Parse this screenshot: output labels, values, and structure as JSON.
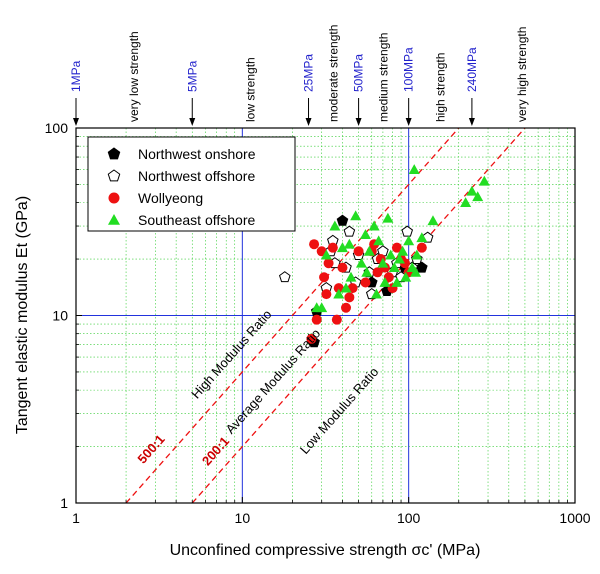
{
  "chart_data": {
    "type": "scatter",
    "xlabel": "Unconfined compressive strength σc' (MPa)",
    "ylabel": "Tangent elastic modulus Et (GPa)",
    "xscale": "log",
    "yscale": "log",
    "xlim": [
      1,
      1000
    ],
    "ylim": [
      1,
      100
    ],
    "x_ticks": [
      "1",
      "10",
      "100",
      "1000"
    ],
    "y_ticks": [
      "1",
      "10",
      "100"
    ],
    "grid": "minor dotted green, major blue at 10",
    "legend_position": "top-left",
    "strength_markers": [
      {
        "label": "1MPa",
        "value": 1
      },
      {
        "label": "5MPa",
        "value": 5
      },
      {
        "label": "25MPa",
        "value": 25
      },
      {
        "label": "50MPa",
        "value": 50
      },
      {
        "label": "100MPa",
        "value": 100
      },
      {
        "label": "240MPa",
        "value": 240
      }
    ],
    "strength_classes": [
      {
        "label": "very low strength",
        "center": 2.236
      },
      {
        "label": "low strength",
        "center": 11.18
      },
      {
        "label": "moderate strength",
        "center": 35.36
      },
      {
        "label": "medium strength",
        "center": 70.71
      },
      {
        "label": "high strength",
        "center": 154.9
      },
      {
        "label": "very high strength",
        "center": 480
      }
    ],
    "ratio_lines": [
      {
        "label": "500:1",
        "ratio": 500
      },
      {
        "label": "200:1",
        "ratio": 200
      }
    ],
    "region_labels": [
      "High Modulus Ratio",
      "Average Modulus Ratio",
      "Low Modulus Ratio"
    ],
    "series": [
      {
        "name": "Northwest onshore",
        "marker": "pentagon-filled",
        "color": "#000000",
        "points": [
          [
            40,
            32
          ],
          [
            74,
            13.5
          ],
          [
            120,
            18
          ],
          [
            28,
            10.5
          ],
          [
            27,
            7.2
          ],
          [
            95,
            18
          ],
          [
            60,
            15
          ]
        ]
      },
      {
        "name": "Northwest offshore",
        "marker": "pentagon-open",
        "color": "#000000",
        "points": [
          [
            18,
            16
          ],
          [
            35,
            25
          ],
          [
            44,
            28
          ],
          [
            32,
            14
          ],
          [
            36,
            19
          ],
          [
            42,
            18
          ],
          [
            50,
            21
          ],
          [
            58,
            17
          ],
          [
            65,
            20
          ],
          [
            70,
            22
          ],
          [
            80,
            17
          ],
          [
            90,
            16
          ],
          [
            98,
            28
          ],
          [
            105,
            18
          ],
          [
            112,
            20
          ],
          [
            130,
            26
          ],
          [
            34,
            22
          ],
          [
            60,
            13
          ],
          [
            48,
            15
          ],
          [
            85,
            19
          ]
        ]
      },
      {
        "name": "Wollyeong",
        "marker": "circle",
        "color": "#ee1111",
        "points": [
          [
            27,
            24
          ],
          [
            30,
            22
          ],
          [
            33,
            19
          ],
          [
            35,
            23
          ],
          [
            38,
            14
          ],
          [
            40,
            18
          ],
          [
            44,
            12.5
          ],
          [
            46,
            14
          ],
          [
            50,
            22
          ],
          [
            55,
            15
          ],
          [
            60,
            22
          ],
          [
            65,
            17
          ],
          [
            68,
            20
          ],
          [
            72,
            18
          ],
          [
            76,
            16
          ],
          [
            80,
            14
          ],
          [
            85,
            23
          ],
          [
            90,
            20
          ],
          [
            95,
            19
          ],
          [
            100,
            17
          ],
          [
            120,
            23
          ],
          [
            26,
            7.5
          ],
          [
            28,
            9.5
          ],
          [
            32,
            13
          ],
          [
            37,
            9.5
          ],
          [
            42,
            11
          ],
          [
            62,
            24
          ],
          [
            31,
            16
          ]
        ]
      },
      {
        "name": "Southeast offshore",
        "marker": "triangle",
        "color": "#22dd22",
        "points": [
          [
            28,
            11
          ],
          [
            32,
            21
          ],
          [
            36,
            30
          ],
          [
            40,
            23
          ],
          [
            42,
            14
          ],
          [
            45,
            16
          ],
          [
            48,
            34
          ],
          [
            52,
            19
          ],
          [
            55,
            27
          ],
          [
            58,
            22
          ],
          [
            62,
            30
          ],
          [
            64,
            13
          ],
          [
            66,
            25
          ],
          [
            70,
            19
          ],
          [
            75,
            33
          ],
          [
            78,
            21
          ],
          [
            82,
            18
          ],
          [
            85,
            15
          ],
          [
            88,
            20
          ],
          [
            92,
            22
          ],
          [
            96,
            16
          ],
          [
            100,
            25
          ],
          [
            105,
            18
          ],
          [
            108,
            60
          ],
          [
            112,
            21
          ],
          [
            120,
            26
          ],
          [
            140,
            32
          ],
          [
            220,
            40
          ],
          [
            240,
            46
          ],
          [
            260,
            43
          ],
          [
            285,
            52
          ],
          [
            38,
            13
          ],
          [
            44,
            24
          ],
          [
            56,
            17
          ],
          [
            72,
            15
          ],
          [
            110,
            17
          ],
          [
            30,
            11
          ]
        ]
      }
    ]
  }
}
